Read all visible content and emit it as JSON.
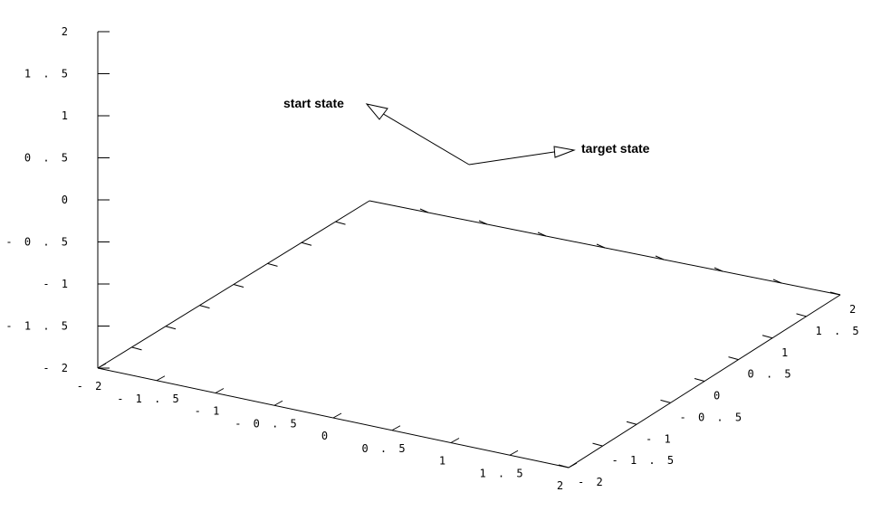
{
  "chart_data": {
    "type": "scatter",
    "title": "",
    "xlabel": "",
    "ylabel": "",
    "zlabel": "",
    "xlim": [
      -2,
      2
    ],
    "ylim": [
      -2,
      2
    ],
    "zlim": [
      -2,
      2
    ],
    "grid": false,
    "x_ticks": [
      "- 2",
      "- 1 . 5",
      "- 1",
      "- 0 . 5",
      "0",
      "0 . 5",
      "1",
      "1 . 5",
      "2"
    ],
    "y_ticks": [
      "- 2",
      "- 1 . 5",
      "- 1",
      "- 0 . 5",
      "0",
      "0 . 5",
      "1",
      "1 . 5",
      "2"
    ],
    "z_ticks": [
      "- 2",
      "- 1 . 5",
      "- 1",
      "- 0 . 5",
      "0",
      "0 . 5",
      "1",
      "1 . 5",
      "2"
    ],
    "annotations": {
      "start_label": "start state",
      "target_label": "target state"
    }
  }
}
